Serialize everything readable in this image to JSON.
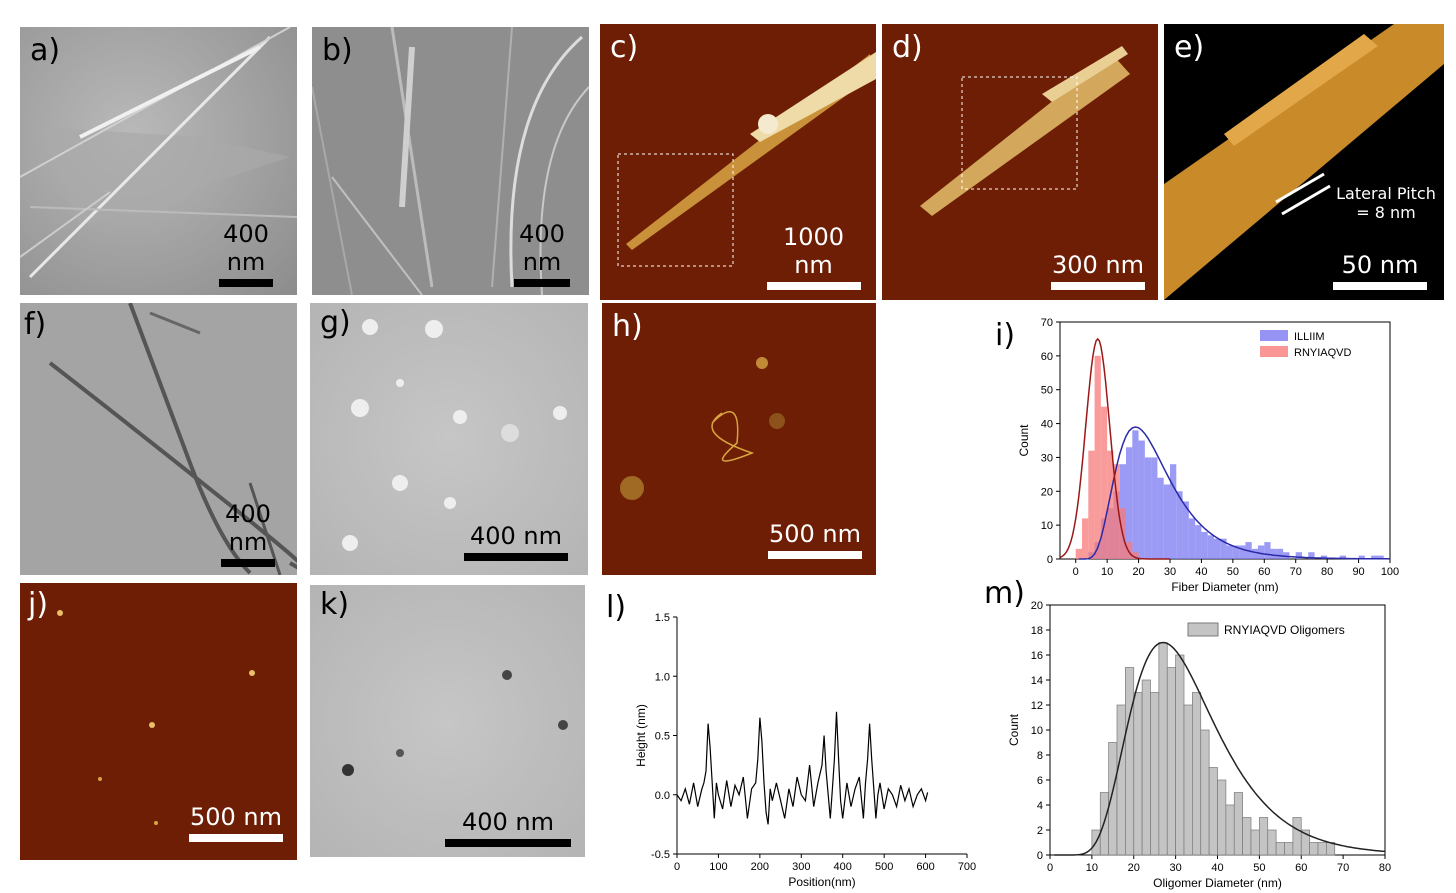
{
  "panels": {
    "a": {
      "label": "a)",
      "scale": "400 nm"
    },
    "b": {
      "label": "b)",
      "scale": "400 nm"
    },
    "c": {
      "label": "c)",
      "scale": "1000 nm"
    },
    "d": {
      "label": "d)",
      "scale": "300 nm"
    },
    "e": {
      "label": "e)",
      "scale": "50 nm",
      "annotation_line1": "Lateral Pitch",
      "annotation_line2": "= 8 nm"
    },
    "f": {
      "label": "f)",
      "scale": "400 nm"
    },
    "g": {
      "label": "g)",
      "scale": "400 nm"
    },
    "h": {
      "label": "h)",
      "scale": "500 nm"
    },
    "i": {
      "label": "i)"
    },
    "j": {
      "label": "j)",
      "scale": "500 nm"
    },
    "k": {
      "label": "k)",
      "scale": "400 nm"
    },
    "l": {
      "label": "l)"
    },
    "m": {
      "label": "m)"
    }
  },
  "colors": {
    "afm_background": "#6e1e04",
    "fibril_gold": "#d9a441",
    "illiim_blue": "#7a78f0",
    "rnyiaqvd_red": "#f77a7a",
    "fit_blue": "#2a2aa8",
    "fit_red": "#9a1818",
    "bar_grey": "#c4c4c4"
  },
  "chart_data": [
    {
      "panel": "i",
      "type": "bar",
      "xlabel": "Fiber Diameter (nm)",
      "ylabel": "Count",
      "xlim": [
        -5,
        100
      ],
      "ylim": [
        0,
        70
      ],
      "xticks": [
        0,
        10,
        20,
        30,
        40,
        50,
        60,
        70,
        80,
        90,
        100
      ],
      "yticks": [
        0,
        10,
        20,
        30,
        40,
        50,
        60,
        70
      ],
      "legend": "top-right",
      "bin_width": 2,
      "series": [
        {
          "name": "ILLIIM",
          "bin_starts": [
            4,
            6,
            8,
            10,
            12,
            14,
            16,
            18,
            20,
            22,
            24,
            26,
            28,
            30,
            32,
            34,
            36,
            38,
            40,
            42,
            44,
            46,
            48,
            50,
            52,
            54,
            56,
            58,
            60,
            62,
            64,
            66,
            70,
            74,
            78,
            84,
            90,
            94,
            96
          ],
          "values": [
            2,
            5,
            12,
            15,
            20,
            28,
            33,
            38,
            35,
            30,
            30,
            24,
            22,
            28,
            20,
            17,
            12,
            10,
            8,
            7,
            6,
            6,
            4,
            4,
            4,
            5,
            3,
            4,
            5,
            3,
            3,
            2,
            2,
            2,
            1,
            1,
            1,
            1,
            1
          ],
          "fit": "lognormal",
          "fit_peak_x": 19,
          "fit_peak_y": 39
        },
        {
          "name": "RNYIAQVD",
          "bin_starts": [
            0,
            2,
            4,
            6,
            8,
            10,
            12,
            14,
            16,
            18
          ],
          "values": [
            3,
            12,
            32,
            60,
            45,
            32,
            28,
            15,
            5,
            2
          ],
          "fit": "gaussian",
          "fit_peak_x": 7,
          "fit_peak_y": 65
        }
      ]
    },
    {
      "panel": "l",
      "type": "line",
      "xlabel": "Position(nm)",
      "ylabel": "Height (nm)",
      "xlim": [
        0,
        700
      ],
      "ylim": [
        -0.5,
        1.5
      ],
      "xticks": [
        0,
        100,
        200,
        300,
        400,
        500,
        600,
        700
      ],
      "yticks": [
        -0.5,
        0.0,
        0.5,
        1.0,
        1.5
      ],
      "ytick_labels": [
        "-0.5",
        "0.0",
        "0.5",
        "1.0",
        "1.5"
      ],
      "series": [
        {
          "name": "",
          "x": [
            0,
            10,
            20,
            30,
            40,
            50,
            60,
            65,
            70,
            75,
            80,
            85,
            90,
            95,
            100,
            110,
            120,
            130,
            140,
            150,
            160,
            170,
            180,
            190,
            195,
            200,
            205,
            210,
            215,
            220,
            225,
            230,
            240,
            250,
            260,
            270,
            280,
            290,
            300,
            310,
            320,
            330,
            340,
            350,
            355,
            360,
            365,
            370,
            375,
            380,
            385,
            390,
            395,
            400,
            410,
            420,
            430,
            440,
            450,
            455,
            460,
            465,
            470,
            475,
            480,
            485,
            490,
            500,
            510,
            520,
            530,
            540,
            550,
            560,
            570,
            580,
            590,
            600,
            605
          ],
          "y": [
            0.0,
            -0.05,
            0.05,
            -0.08,
            0.1,
            -0.1,
            0.05,
            0.1,
            0.2,
            0.6,
            0.4,
            0.1,
            -0.2,
            0.1,
            0.0,
            -0.12,
            0.12,
            -0.1,
            0.08,
            0.0,
            0.15,
            -0.2,
            0.05,
            0.1,
            0.3,
            0.65,
            0.45,
            0.1,
            -0.15,
            -0.25,
            0.05,
            -0.05,
            0.1,
            -0.05,
            -0.2,
            0.05,
            -0.1,
            0.15,
            0.0,
            -0.05,
            0.25,
            -0.1,
            0.1,
            0.25,
            0.5,
            0.2,
            0.0,
            -0.2,
            0.05,
            0.3,
            0.7,
            0.3,
            -0.05,
            -0.2,
            0.1,
            -0.1,
            0.05,
            0.15,
            -0.2,
            0.1,
            0.3,
            0.6,
            0.3,
            0.05,
            -0.2,
            0.0,
            0.1,
            -0.12,
            0.05,
            0.0,
            -0.1,
            0.08,
            -0.05,
            0.05,
            -0.1,
            0.0,
            0.05,
            -0.05,
            0.02
          ]
        }
      ]
    },
    {
      "panel": "m",
      "type": "bar",
      "xlabel": "Oligomer Diameter (nm)",
      "ylabel": "Count",
      "xlim": [
        0,
        80
      ],
      "ylim": [
        0,
        20
      ],
      "xticks": [
        0,
        10,
        20,
        30,
        40,
        50,
        60,
        70,
        80
      ],
      "yticks": [
        0,
        2,
        4,
        6,
        8,
        10,
        12,
        14,
        16,
        18,
        20
      ],
      "legend": "top-right",
      "bin_width": 2,
      "series": [
        {
          "name": "RNYIAQVD Oligomers",
          "bin_starts": [
            10,
            12,
            14,
            16,
            18,
            20,
            22,
            24,
            26,
            28,
            30,
            32,
            34,
            36,
            38,
            40,
            42,
            44,
            46,
            48,
            50,
            52,
            54,
            56,
            58,
            60,
            62,
            64,
            66
          ],
          "values": [
            2,
            5,
            9,
            12,
            15,
            13,
            14,
            13,
            17,
            15,
            16,
            12,
            13,
            10,
            7,
            6,
            4,
            5,
            3,
            2,
            3,
            2,
            1,
            1,
            3,
            2,
            1,
            1,
            1
          ],
          "fit": "lognormal",
          "fit_peak_x": 27,
          "fit_peak_y": 17
        }
      ]
    }
  ]
}
